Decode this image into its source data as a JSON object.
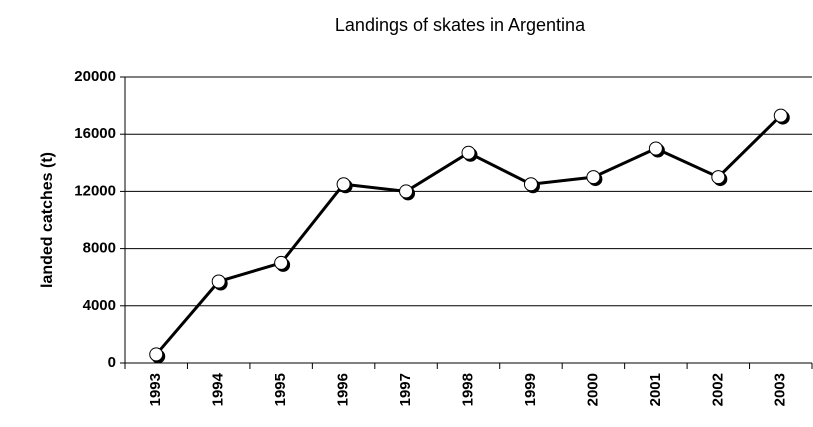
{
  "chart_data": {
    "type": "line",
    "title": "Landings of skates in Argentina",
    "ylabel": "landed catches (t)",
    "categories": [
      "1993",
      "1994",
      "1995",
      "1996",
      "1997",
      "1998",
      "1999",
      "2000",
      "2001",
      "2002",
      "2003"
    ],
    "values": [
      600,
      5700,
      7000,
      12500,
      12000,
      14700,
      12500,
      13000,
      15000,
      13000,
      17300
    ],
    "color": "#000000",
    "ylim": [
      0,
      20000
    ],
    "yticks": [
      0,
      4000,
      8000,
      12000,
      16000,
      20000
    ],
    "grid": true
  }
}
